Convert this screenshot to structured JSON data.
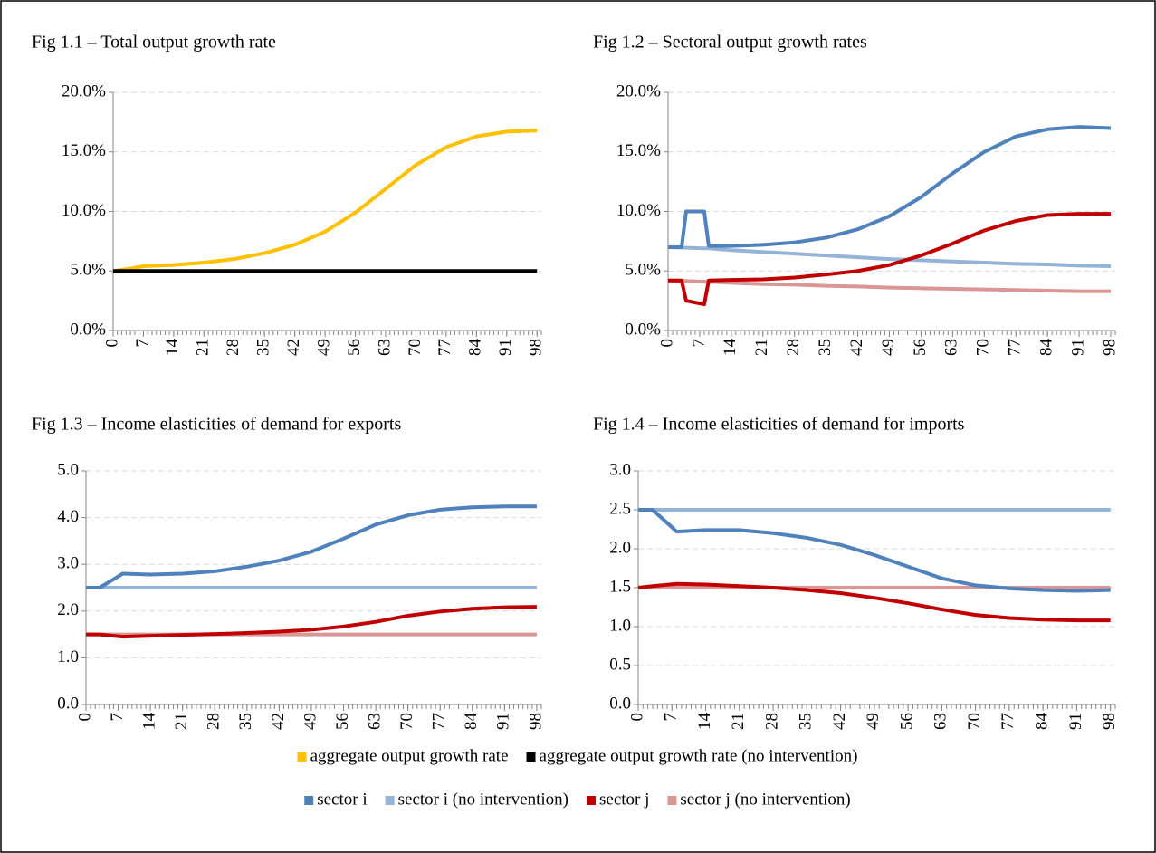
{
  "chart_data": [
    {
      "type": "line",
      "title": "Fig 1.1 – Total output growth rate",
      "x": [
        0,
        4,
        7,
        14,
        21,
        28,
        35,
        42,
        49,
        56,
        63,
        70,
        77,
        84,
        91,
        98
      ],
      "series": [
        {
          "name": "aggregate output growth rate",
          "color": "#FFC000",
          "values": [
            5.0,
            5.2,
            5.4,
            5.5,
            5.7,
            6.0,
            6.5,
            7.2,
            8.3,
            9.9,
            11.9,
            13.9,
            15.4,
            16.3,
            16.7,
            16.8
          ]
        },
        {
          "name": "aggregate output growth rate (no intervention)",
          "color": "#000000",
          "values": [
            5,
            5,
            5,
            5,
            5,
            5,
            5,
            5,
            5,
            5,
            5,
            5,
            5,
            5,
            5,
            5
          ]
        }
      ],
      "xlim": [
        0,
        99
      ],
      "xticks": [
        0,
        7,
        14,
        21,
        28,
        35,
        42,
        49,
        56,
        63,
        70,
        77,
        84,
        91,
        98
      ],
      "minor_tick_step": 1,
      "ylim": [
        0,
        20
      ],
      "yticks": [
        {
          "value": 0,
          "label": "0.0%"
        },
        {
          "value": 5,
          "label": "5.0%"
        },
        {
          "value": 10,
          "label": "10.0%"
        },
        {
          "value": 15,
          "label": "15.0%"
        },
        {
          "value": 20,
          "label": "20.0%"
        }
      ],
      "grid": true
    },
    {
      "type": "line",
      "title": "Fig 1.2 – Sectoral output growth rates",
      "x": [
        0,
        3,
        4,
        8,
        9,
        14,
        21,
        28,
        35,
        42,
        49,
        56,
        63,
        70,
        77,
        84,
        91,
        98
      ],
      "series": [
        {
          "name": "sector i (no intervention)",
          "color": "#95B3D7",
          "values": [
            7.0,
            6.97,
            6.95,
            6.9,
            6.9,
            6.75,
            6.6,
            6.45,
            6.3,
            6.15,
            6.0,
            5.9,
            5.8,
            5.7,
            5.6,
            5.55,
            5.45,
            5.4
          ]
        },
        {
          "name": "sector j (no intervention)",
          "color": "#D99694",
          "values": [
            4.2,
            4.17,
            4.15,
            4.1,
            4.1,
            4.0,
            3.9,
            3.85,
            3.75,
            3.7,
            3.6,
            3.55,
            3.5,
            3.45,
            3.4,
            3.35,
            3.3,
            3.3
          ]
        },
        {
          "name": "sector i",
          "color": "#4F81BD",
          "values": [
            7.0,
            7.0,
            10.0,
            10.0,
            7.1,
            7.1,
            7.2,
            7.4,
            7.8,
            8.5,
            9.6,
            11.2,
            13.2,
            15.0,
            16.3,
            16.9,
            17.1,
            17.0
          ]
        },
        {
          "name": "sector j",
          "color": "#C00000",
          "values": [
            4.2,
            4.2,
            2.5,
            2.2,
            4.2,
            4.25,
            4.3,
            4.45,
            4.7,
            5.0,
            5.5,
            6.3,
            7.3,
            8.4,
            9.2,
            9.7,
            9.8,
            9.8
          ]
        }
      ],
      "xlim": [
        0,
        99
      ],
      "xticks": [
        0,
        7,
        14,
        21,
        28,
        35,
        42,
        49,
        56,
        63,
        70,
        77,
        84,
        91,
        98
      ],
      "minor_tick_step": 1,
      "ylim": [
        0,
        20
      ],
      "yticks": [
        {
          "value": 0,
          "label": "0.0%"
        },
        {
          "value": 5,
          "label": "5.0%"
        },
        {
          "value": 10,
          "label": "10.0%"
        },
        {
          "value": 15,
          "label": "15.0%"
        },
        {
          "value": 20,
          "label": "20.0%"
        }
      ],
      "grid": true
    },
    {
      "type": "line",
      "title": "Fig 1.3 – Income elasticities of demand for exports",
      "x": [
        0,
        3,
        8,
        14,
        21,
        28,
        35,
        42,
        49,
        56,
        63,
        70,
        77,
        84,
        91,
        98
      ],
      "series": [
        {
          "color": "#95B3D7",
          "values": [
            2.5,
            2.5,
            2.5,
            2.5,
            2.5,
            2.5,
            2.5,
            2.5,
            2.5,
            2.5,
            2.5,
            2.5,
            2.5,
            2.5,
            2.5,
            2.5
          ]
        },
        {
          "color": "#D99694",
          "values": [
            1.5,
            1.5,
            1.5,
            1.5,
            1.5,
            1.5,
            1.5,
            1.5,
            1.5,
            1.5,
            1.5,
            1.5,
            1.5,
            1.5,
            1.5,
            1.5
          ]
        },
        {
          "color": "#4F81BD",
          "values": [
            2.5,
            2.5,
            2.8,
            2.78,
            2.8,
            2.85,
            2.95,
            3.08,
            3.27,
            3.55,
            3.85,
            4.05,
            4.17,
            4.22,
            4.24,
            4.24
          ]
        },
        {
          "color": "#C00000",
          "values": [
            1.5,
            1.5,
            1.45,
            1.47,
            1.49,
            1.51,
            1.53,
            1.56,
            1.6,
            1.67,
            1.77,
            1.9,
            1.99,
            2.05,
            2.08,
            2.09
          ]
        }
      ],
      "xlim": [
        0,
        99
      ],
      "xticks": [
        0,
        7,
        14,
        21,
        28,
        35,
        42,
        49,
        56,
        63,
        70,
        77,
        84,
        91,
        98
      ],
      "minor_tick_step": 1,
      "ylim": [
        0,
        5
      ],
      "yticks": [
        {
          "value": 0,
          "label": "0.0"
        },
        {
          "value": 1,
          "label": "1.0"
        },
        {
          "value": 2,
          "label": "2.0"
        },
        {
          "value": 3,
          "label": "3.0"
        },
        {
          "value": 4,
          "label": "4.0"
        },
        {
          "value": 5,
          "label": "5.0"
        }
      ],
      "grid": true
    },
    {
      "type": "line",
      "title": "Fig 1.4 – Income elasticities of demand for imports",
      "x": [
        0,
        3,
        8,
        14,
        21,
        28,
        35,
        42,
        49,
        56,
        63,
        70,
        77,
        84,
        91,
        98
      ],
      "series": [
        {
          "color": "#95B3D7",
          "values": [
            2.5,
            2.5,
            2.5,
            2.5,
            2.5,
            2.5,
            2.5,
            2.5,
            2.5,
            2.5,
            2.5,
            2.5,
            2.5,
            2.5,
            2.5,
            2.5
          ]
        },
        {
          "color": "#D99694",
          "values": [
            1.5,
            1.5,
            1.5,
            1.5,
            1.5,
            1.5,
            1.5,
            1.5,
            1.5,
            1.5,
            1.5,
            1.5,
            1.5,
            1.5,
            1.5,
            1.5
          ]
        },
        {
          "color": "#4F81BD",
          "values": [
            2.5,
            2.5,
            2.22,
            2.24,
            2.24,
            2.2,
            2.14,
            2.05,
            1.92,
            1.77,
            1.62,
            1.53,
            1.49,
            1.47,
            1.46,
            1.47
          ]
        },
        {
          "color": "#C00000",
          "values": [
            1.5,
            1.52,
            1.55,
            1.54,
            1.52,
            1.5,
            1.47,
            1.43,
            1.37,
            1.3,
            1.22,
            1.15,
            1.11,
            1.09,
            1.08,
            1.08
          ]
        }
      ],
      "xlim": [
        0,
        99
      ],
      "xticks": [
        0,
        7,
        14,
        21,
        28,
        35,
        42,
        49,
        56,
        63,
        70,
        77,
        84,
        91,
        98
      ],
      "minor_tick_step": 1,
      "ylim": [
        0,
        3
      ],
      "yticks": [
        {
          "value": 0,
          "label": "0.0"
        },
        0.5,
        {
          "value": 1,
          "label": "1.0"
        },
        1.5,
        {
          "value": 2,
          "label": "2.0"
        },
        2.5,
        {
          "value": 3,
          "label": "3.0"
        }
      ],
      "grid": true
    }
  ]
}
